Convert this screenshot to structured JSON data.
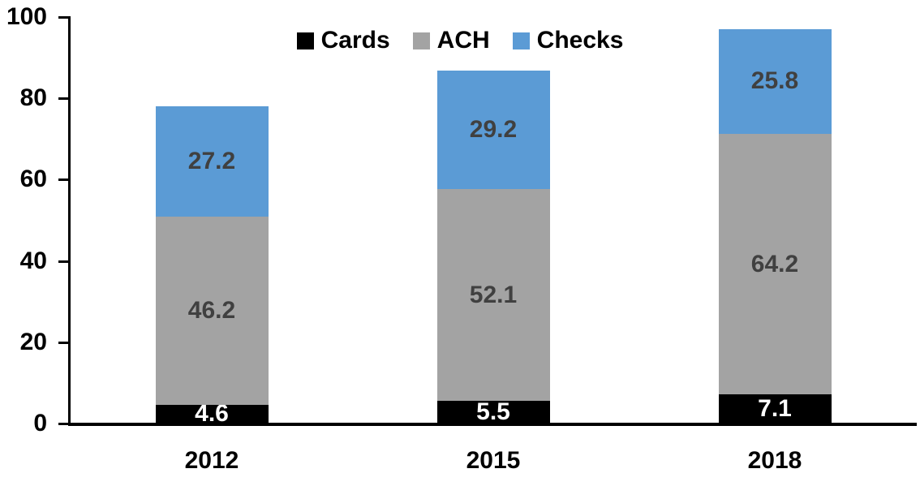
{
  "chart_data": {
    "type": "bar",
    "stacked": true,
    "title": "",
    "categories": [
      "2012",
      "2015",
      "2018"
    ],
    "series": [
      {
        "name": "Cards",
        "color": "#000000",
        "label_color": "#ffffff",
        "values": [
          4.6,
          5.5,
          7.1
        ]
      },
      {
        "name": "ACH",
        "color": "#A3A3A3",
        "label_color": "#404040",
        "values": [
          46.2,
          52.1,
          64.2
        ]
      },
      {
        "name": "Checks",
        "color": "#5B9BD5",
        "label_color": "#404040",
        "values": [
          27.2,
          29.2,
          25.8
        ]
      }
    ],
    "totals": [
      78.0,
      86.8,
      97.1
    ],
    "ylim": [
      0,
      100
    ],
    "yticks": [
      0,
      20,
      40,
      60,
      80,
      100
    ],
    "legend_position": "top",
    "legend_order": [
      "Cards",
      "ACH",
      "Checks"
    ],
    "grid": false,
    "axis_color": "#000000",
    "background_color": "#ffffff",
    "value_label_decimals": 1
  }
}
